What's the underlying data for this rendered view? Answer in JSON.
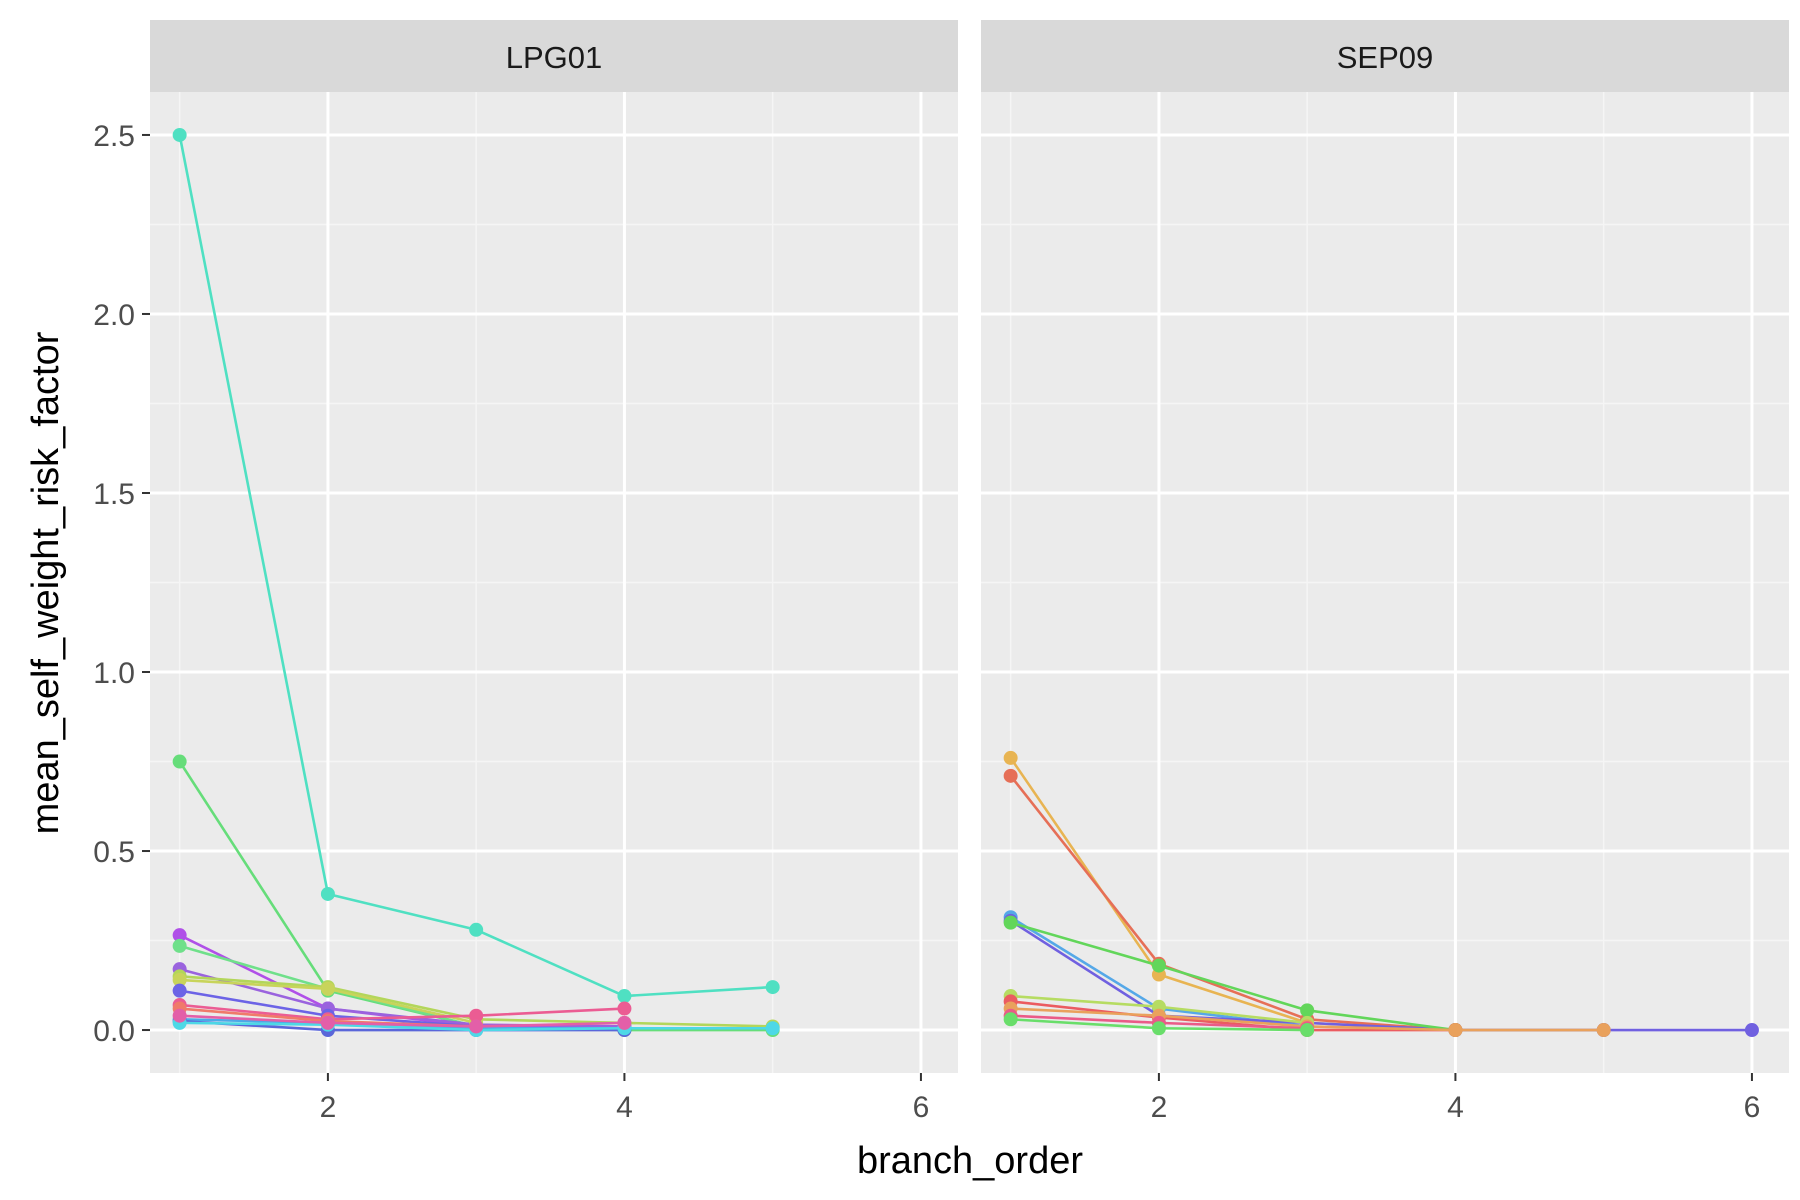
{
  "chart_data": {
    "type": "line",
    "facets": [
      "LPG01",
      "SEP09"
    ],
    "xlabel": "branch_order",
    "ylabel": "mean_self_weight_risk_factor",
    "xlim": [
      0.8,
      6.25
    ],
    "ylim": [
      -0.12,
      2.62
    ],
    "x_ticks": [
      2,
      4,
      6
    ],
    "y_ticks": [
      0.0,
      0.5,
      1.0,
      1.5,
      2.0,
      2.5
    ],
    "x_tick_labels": [
      "2",
      "4",
      "6"
    ],
    "y_tick_labels": [
      "0.0",
      "0.5",
      "1.0",
      "1.5",
      "2.0",
      "2.5"
    ],
    "grid": true,
    "legend": "none",
    "panel_background": "#EBEBEB",
    "strip_background": "#D9D9D9",
    "grid_major_color": "#FFFFFF",
    "grid_minor_color": "#F5F5F5",
    "panels": [
      {
        "facet": "LPG01",
        "series": [
          {
            "color": "#4FE0C2",
            "points": [
              [
                1,
                2.5
              ],
              [
                2,
                0.38
              ],
              [
                3,
                0.28
              ],
              [
                4,
                0.095
              ],
              [
                5,
                0.12
              ]
            ]
          },
          {
            "color": "#66DD7A",
            "points": [
              [
                1,
                0.75
              ],
              [
                2,
                0.11
              ],
              [
                3,
                0.01
              ],
              [
                4,
                0.0
              ],
              [
                5,
                0.0
              ]
            ]
          },
          {
            "color": "#B050E8",
            "points": [
              [
                1,
                0.265
              ],
              [
                2,
                0.06
              ],
              [
                3,
                0.01
              ],
              [
                4,
                0.01
              ]
            ]
          },
          {
            "color": "#6FE08A",
            "points": [
              [
                1,
                0.235
              ],
              [
                2,
                0.115
              ],
              [
                3,
                0.01
              ]
            ]
          },
          {
            "color": "#9A63DE",
            "points": [
              [
                1,
                0.17
              ],
              [
                2,
                0.06
              ],
              [
                3,
                0.015
              ],
              [
                4,
                0.01
              ]
            ]
          },
          {
            "color": "#B3D65A",
            "points": [
              [
                1,
                0.15
              ],
              [
                2,
                0.12
              ],
              [
                3,
                0.03
              ],
              [
                4,
                0.02
              ],
              [
                5,
                0.01
              ]
            ]
          },
          {
            "color": "#C8D45B",
            "points": [
              [
                1,
                0.14
              ],
              [
                2,
                0.115
              ],
              [
                3,
                0.02
              ]
            ]
          },
          {
            "color": "#6C63E6",
            "points": [
              [
                1,
                0.11
              ],
              [
                2,
                0.04
              ],
              [
                3,
                0.01
              ]
            ]
          },
          {
            "color": "#EB5C93",
            "points": [
              [
                1,
                0.07
              ],
              [
                2,
                0.03
              ],
              [
                3,
                0.04
              ],
              [
                4,
                0.06
              ]
            ]
          },
          {
            "color": "#F07A6A",
            "points": [
              [
                1,
                0.06
              ],
              [
                2,
                0.025
              ],
              [
                3,
                0.01
              ]
            ]
          },
          {
            "color": "#4CA9E8",
            "points": [
              [
                1,
                0.03
              ],
              [
                2,
                0.02
              ],
              [
                3,
                0.005
              ],
              [
                4,
                0.005
              ]
            ]
          },
          {
            "color": "#5A66D9",
            "points": [
              [
                1,
                0.025
              ],
              [
                2,
                0.0
              ],
              [
                3,
                0.0
              ],
              [
                4,
                0.0
              ]
            ]
          },
          {
            "color": "#4DD8E6",
            "points": [
              [
                1,
                0.02
              ],
              [
                2,
                0.015
              ],
              [
                3,
                0.0
              ],
              [
                4,
                0.005
              ],
              [
                5,
                0.005
              ]
            ]
          },
          {
            "color": "#E35FA8",
            "points": [
              [
                1,
                0.04
              ],
              [
                2,
                0.02
              ],
              [
                3,
                0.01
              ],
              [
                4,
                0.02
              ]
            ]
          }
        ]
      },
      {
        "facet": "SEP09",
        "series": [
          {
            "color": "#E8B452",
            "points": [
              [
                1,
                0.76
              ],
              [
                2,
                0.155
              ],
              [
                3,
                0.02
              ],
              [
                4,
                0.0
              ],
              [
                5,
                0.0
              ]
            ]
          },
          {
            "color": "#E66F57",
            "points": [
              [
                1,
                0.71
              ],
              [
                2,
                0.185
              ],
              [
                3,
                0.03
              ],
              [
                4,
                0.0
              ]
            ]
          },
          {
            "color": "#55A8E8",
            "points": [
              [
                1,
                0.315
              ],
              [
                2,
                0.06
              ],
              [
                3,
                0.01
              ]
            ]
          },
          {
            "color": "#7060E0",
            "points": [
              [
                1,
                0.305
              ],
              [
                2,
                0.04
              ],
              [
                3,
                0.02
              ],
              [
                4,
                0.0
              ],
              [
                5,
                0.0
              ],
              [
                6,
                0.0
              ]
            ]
          },
          {
            "color": "#62D65A",
            "points": [
              [
                1,
                0.3
              ],
              [
                2,
                0.18
              ],
              [
                3,
                0.055
              ],
              [
                4,
                0.0
              ]
            ]
          },
          {
            "color": "#B6DC62",
            "points": [
              [
                1,
                0.095
              ],
              [
                2,
                0.065
              ],
              [
                3,
                0.02
              ]
            ]
          },
          {
            "color": "#EB5B60",
            "points": [
              [
                1,
                0.08
              ],
              [
                2,
                0.035
              ],
              [
                3,
                0.0
              ],
              [
                4,
                0.0
              ]
            ]
          },
          {
            "color": "#E9A15C",
            "points": [
              [
                1,
                0.06
              ],
              [
                2,
                0.04
              ],
              [
                3,
                0.01
              ],
              [
                4,
                0.0
              ],
              [
                5,
                0.0
              ]
            ]
          },
          {
            "color": "#EA5B88",
            "points": [
              [
                1,
                0.04
              ],
              [
                2,
                0.02
              ],
              [
                3,
                0.005
              ]
            ]
          },
          {
            "color": "#69DE6A",
            "points": [
              [
                1,
                0.03
              ],
              [
                2,
                0.005
              ],
              [
                3,
                0.0
              ]
            ]
          }
        ]
      }
    ]
  }
}
